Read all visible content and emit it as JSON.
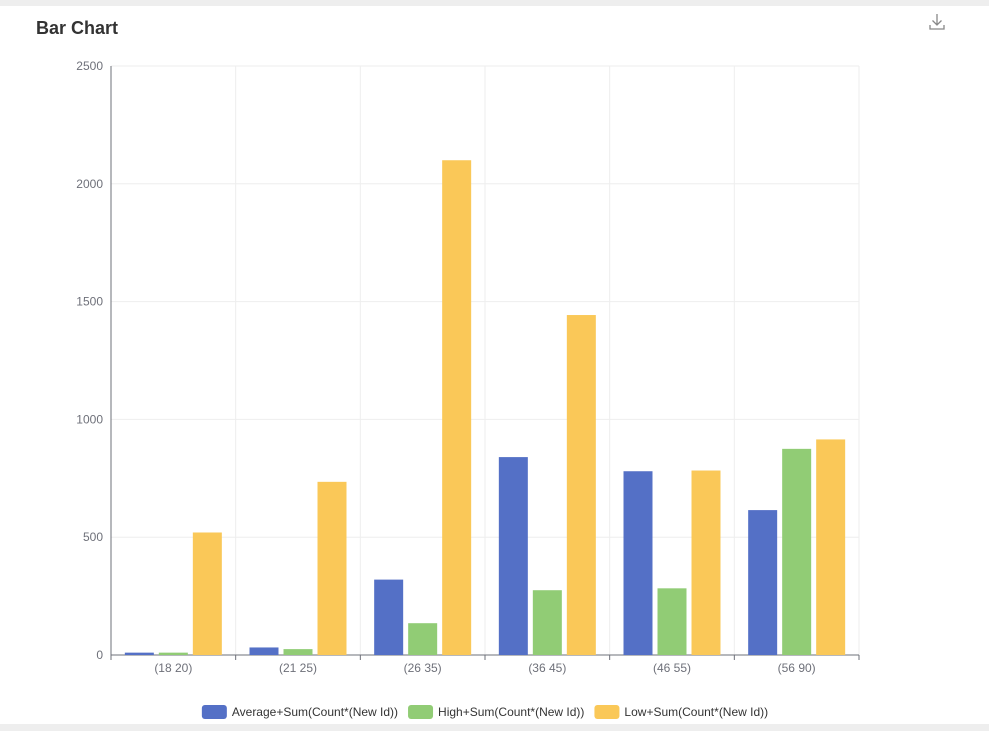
{
  "header": {
    "title": "Bar Chart",
    "download_icon": "download-icon"
  },
  "chart_data": {
    "type": "bar",
    "title": "Bar Chart",
    "xlabel": "",
    "ylabel": "",
    "ylim": [
      0,
      2500
    ],
    "yticks": [
      "0",
      "500",
      "1000",
      "1500",
      "2000",
      "2500"
    ],
    "categories": [
      "(18  20)",
      "(21  25)",
      "(26  35)",
      "(36  45)",
      "(46  55)",
      "(56  90)"
    ],
    "grid": true,
    "legend_position": "bottom-center",
    "series": [
      {
        "name": "Average+Sum(Count*(New Id))",
        "color": "#5470c6",
        "values": [
          10,
          32,
          320,
          840,
          780,
          615
        ]
      },
      {
        "name": "High+Sum(Count*(New Id))",
        "color": "#91cc75",
        "values": [
          10,
          25,
          135,
          275,
          283,
          875
        ]
      },
      {
        "name": "Low+Sum(Count*(New Id))",
        "color": "#fac858",
        "values": [
          520,
          735,
          2100,
          1443,
          783,
          915
        ]
      }
    ]
  }
}
